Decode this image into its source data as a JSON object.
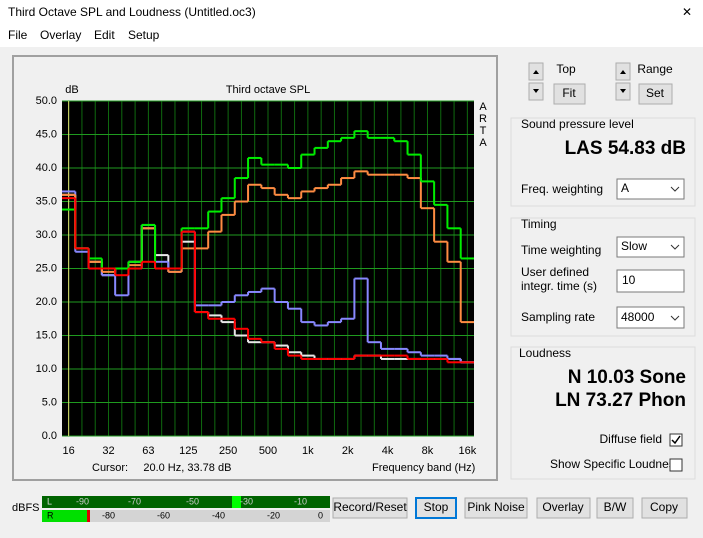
{
  "window": {
    "title": "Third Octave SPL and Loudness (Untitled.oc3)",
    "close": "✕"
  },
  "menu": [
    "File",
    "Overlay",
    "Edit",
    "Setup"
  ],
  "chart_data": {
    "type": "line",
    "title": "Third octave SPL",
    "y_label": "dB",
    "side_label": [
      "A",
      "R",
      "T",
      "A"
    ],
    "x_label": "Frequency band (Hz)",
    "cursor": "Cursor:     20.0 Hz, 33.78 dB",
    "categories": [
      "16",
      null,
      null,
      "32",
      null,
      null,
      "63",
      null,
      null,
      "125",
      null,
      null,
      "250",
      null,
      null,
      "500",
      null,
      null,
      "1k",
      null,
      null,
      "2k",
      null,
      null,
      "4k",
      null,
      null,
      "8k",
      null,
      null,
      "16k"
    ],
    "ylim": [
      0,
      50
    ],
    "yticks": [
      {
        "value": 0,
        "label": "0.0"
      },
      {
        "value": 5,
        "label": "5.0"
      },
      {
        "value": 10,
        "label": "10.0"
      },
      {
        "value": 15,
        "label": "15.0"
      },
      {
        "value": 20,
        "label": "20.0"
      },
      {
        "value": 25,
        "label": "25.0"
      },
      {
        "value": 30,
        "label": "30.0"
      },
      {
        "value": 35,
        "label": "35.0"
      },
      {
        "value": 40,
        "label": "40.0"
      },
      {
        "value": 45,
        "label": "45.0"
      },
      {
        "value": 50,
        "label": "50.0"
      }
    ],
    "grid": true,
    "series": [
      {
        "color": "#e8e8e8",
        "values": [
          36,
          28,
          26,
          24,
          25,
          26,
          31,
          27,
          25,
          29,
          18.5,
          18,
          17,
          15,
          14,
          14,
          13.5,
          12.5,
          12,
          11.5,
          11.5,
          11.5,
          12,
          12,
          11.5,
          11.5,
          11.5,
          11.5,
          11.5,
          11.5,
          11
        ]
      },
      {
        "color": "#8888ff",
        "values": [
          36.5,
          27.5,
          25,
          24,
          21,
          25,
          31.5,
          26,
          24.5,
          30.5,
          19.5,
          19.5,
          20,
          21,
          21.5,
          22,
          20,
          19,
          17,
          16.5,
          17,
          17.5,
          23.5,
          14,
          13,
          13,
          12.5,
          12,
          12,
          11.5,
          11
        ]
      },
      {
        "color": "#ff8c42",
        "values": [
          36,
          28,
          26,
          24.5,
          25,
          25.5,
          31,
          25,
          24.5,
          28,
          28,
          30.5,
          33,
          35,
          37.5,
          37,
          36,
          35.5,
          36.5,
          37,
          37.5,
          38.5,
          39.5,
          39,
          39,
          39,
          38.5,
          34,
          29,
          26,
          17
        ]
      },
      {
        "color": "#00ee00",
        "values": [
          33.8,
          28,
          26.5,
          25,
          25,
          26,
          31.5,
          25,
          25,
          31,
          31,
          33.5,
          35.5,
          38.5,
          41.5,
          40.5,
          40.5,
          40,
          42,
          43,
          44,
          44.5,
          45.5,
          44.5,
          44.5,
          44,
          42,
          38,
          34.5,
          31,
          26.5
        ]
      },
      {
        "color": "#ff0000",
        "values": [
          35.5,
          28,
          25,
          25,
          24,
          25,
          26,
          25,
          25,
          30.5,
          18.5,
          17.5,
          17.5,
          16,
          14.5,
          14,
          13,
          12,
          11.5,
          11.5,
          11.5,
          11.5,
          12,
          12,
          12,
          12,
          11.5,
          11.5,
          11.5,
          11,
          11
        ]
      }
    ]
  },
  "controls": {
    "top_label": "Top",
    "fit": "Fit",
    "range_label": "Range",
    "set": "Set"
  },
  "spl": {
    "title": "Sound pressure level",
    "reading": "LAS 54.83 dB",
    "weighting_label": "Freq. weighting",
    "weighting": "A"
  },
  "timing": {
    "title": "Timing",
    "time_weighting_label": "Time weighting",
    "time_weighting": "Slow",
    "integr_label": [
      "User defined",
      "integr. time (s)"
    ],
    "integr_time": "10",
    "sampling_label": "Sampling rate",
    "sampling_rate": "48000"
  },
  "loudness": {
    "title": "Loudness",
    "n": "N 10.03 Sone",
    "ln": "LN 73.27 Phon",
    "diffuse": "Diffuse field",
    "specific": "Show Specific Loudness"
  },
  "meter": {
    "unit": "dBFS",
    "left": "L",
    "right": "R",
    "left_ticks": [
      "-90",
      "-70",
      "-50",
      "-30",
      "-10"
    ],
    "right_ticks": [
      "-80",
      "-60",
      "-40",
      "-20",
      "0"
    ]
  },
  "buttons": [
    "Record/Reset",
    "Stop",
    "Pink Noise",
    "Overlay",
    "B/W",
    "Copy"
  ]
}
